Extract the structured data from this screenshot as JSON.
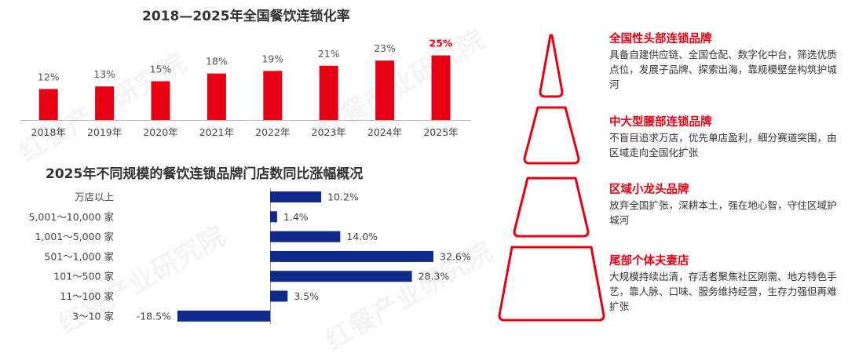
{
  "watermark": "红餐产业研究院",
  "chart_data": [
    {
      "type": "bar",
      "title": "2018—2025年全国餐饮连锁化率",
      "categories": [
        "2018年",
        "2019年",
        "2020年",
        "2021年",
        "2022年",
        "2023年",
        "2024年",
        "2025年"
      ],
      "values": [
        12,
        13,
        15,
        18,
        19,
        21,
        23,
        25
      ],
      "value_labels": [
        "12%",
        "13%",
        "15%",
        "18%",
        "19%",
        "21%",
        "23%",
        "25%"
      ],
      "highlight_index": 7,
      "ylim": [
        0,
        27
      ],
      "colors": {
        "bar": "#e60012",
        "label": "#555555",
        "highlight_label": "#e60012",
        "axis": "#bbbbbb"
      }
    },
    {
      "type": "bar",
      "orientation": "horizontal",
      "title": "2025年不同规模的餐饮连锁品牌门店数同比涨幅概况",
      "categories": [
        "万店以上",
        "5,001～10,000 家",
        "1,001～5,000 家",
        "501～1,000 家",
        "101～500 家",
        "11～100 家",
        "3～10 家"
      ],
      "values": [
        10.2,
        1.4,
        14.0,
        32.6,
        28.3,
        3.5,
        -18.5
      ],
      "value_labels": [
        "10.2%",
        "1.4%",
        "14.0%",
        "32.6%",
        "28.3%",
        "3.5%",
        "-18.5%"
      ],
      "xlim": [
        -20,
        35
      ],
      "colors": {
        "bar": "#102a8c",
        "axis": "#999999"
      }
    }
  ],
  "tiers": [
    {
      "title": "全国性头部连锁品牌",
      "desc": "具备自建供应链、全国仓配、数字化中台，筛选优质点位，发展子品牌、探索出海，靠规模壁垒构筑护城河"
    },
    {
      "title": "中大型腰部连锁品牌",
      "desc": "不盲目追求万店，优先单店盈利，细分赛道突围，由区域走向全国化扩张"
    },
    {
      "title": "区域小龙头品牌",
      "desc": "放弃全国扩张，深耕本土，强在地心智，守住区域护城河"
    },
    {
      "title": "尾部个体夫妻店",
      "desc": "大规模持续出清，存活者聚焦社区刚需、地方特色手艺，靠人脉、口味、服务维持经营，生存力强但再难扩张"
    }
  ],
  "pyramid_color": "#e60012"
}
